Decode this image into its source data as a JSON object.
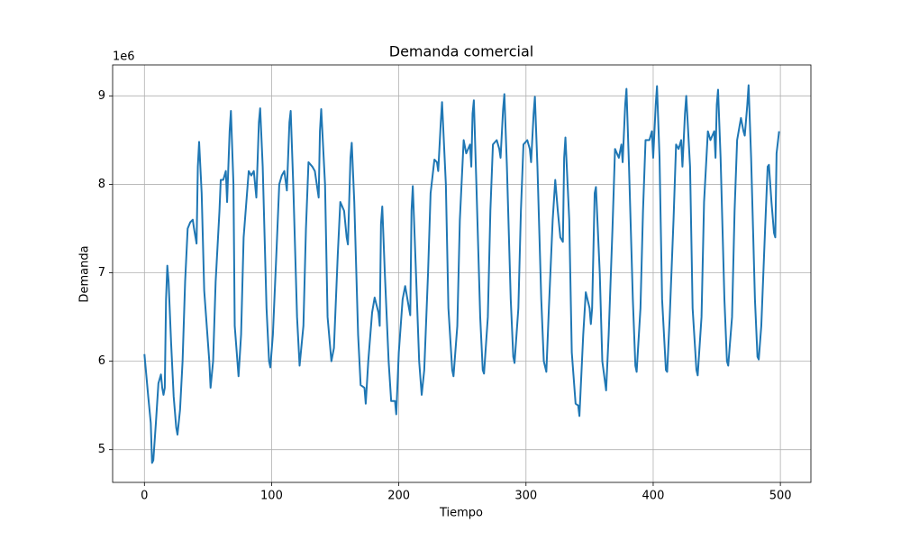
{
  "chart_data": {
    "type": "line",
    "title": "Demanda comercial",
    "x_label": "Tiempo",
    "y_label": "Demanda",
    "y_offset_text": "1e6",
    "color": "#1f77b4",
    "grid": true,
    "xlim": [
      -25,
      524
    ],
    "ylim": [
      4.63,
      9.35
    ],
    "xticks": [
      0,
      100,
      200,
      300,
      400,
      500
    ],
    "yticks": [
      5,
      6,
      7,
      8,
      9
    ],
    "x": [
      0,
      3,
      5,
      6,
      7,
      9,
      11,
      13,
      14,
      15,
      16,
      17,
      18,
      19,
      21,
      23,
      25,
      26,
      28,
      30,
      32,
      34,
      36,
      38,
      39,
      41,
      42,
      43,
      45,
      47,
      51,
      52,
      54,
      56,
      59,
      60,
      62,
      64,
      65,
      67,
      68,
      70,
      71,
      74,
      76,
      78,
      82,
      84,
      86,
      88,
      90,
      91,
      93,
      96,
      98,
      99,
      101,
      104,
      106,
      108,
      110,
      112,
      114,
      115,
      117,
      120,
      122,
      125,
      127,
      129,
      132,
      134,
      137,
      138,
      139,
      142,
      144,
      147,
      149,
      152,
      154,
      157,
      159,
      160,
      162,
      163,
      165,
      168,
      170,
      173,
      174,
      176,
      179,
      181,
      184,
      185,
      186,
      187,
      189,
      192,
      194,
      197,
      198,
      200,
      203,
      205,
      208,
      209,
      210,
      211,
      213,
      216,
      218,
      220,
      223,
      225,
      228,
      230,
      231,
      233,
      234,
      237,
      239,
      242,
      243,
      246,
      248,
      251,
      253,
      256,
      257,
      258,
      259,
      261,
      264,
      266,
      267,
      270,
      272,
      274,
      277,
      279,
      280,
      282,
      283,
      285,
      288,
      290,
      291,
      294,
      296,
      298,
      301,
      303,
      304,
      306,
      307,
      309,
      312,
      314,
      316,
      318,
      321,
      323,
      325,
      327,
      329,
      330,
      331,
      334,
      336,
      339,
      341,
      342,
      345,
      347,
      350,
      351,
      352,
      354,
      355,
      358,
      360,
      363,
      365,
      368,
      370,
      373,
      375,
      376,
      378,
      379,
      381,
      384,
      386,
      387,
      390,
      392,
      394,
      397,
      399,
      400,
      402,
      403,
      405,
      407,
      410,
      411,
      413,
      416,
      418,
      420,
      422,
      423,
      425,
      426,
      429,
      431,
      434,
      435,
      438,
      440,
      443,
      445,
      448,
      449,
      450,
      451,
      453,
      456,
      458,
      459,
      462,
      464,
      466,
      469,
      471,
      472,
      474,
      475,
      477,
      480,
      482,
      483,
      485,
      488,
      490,
      491,
      493,
      495,
      496,
      497,
      499
    ],
    "values": [
      6.08,
      5.6,
      5.3,
      4.85,
      4.88,
      5.3,
      5.75,
      5.85,
      5.7,
      5.62,
      5.7,
      6.7,
      7.08,
      6.9,
      6.2,
      5.6,
      5.25,
      5.17,
      5.45,
      6.0,
      6.9,
      7.5,
      7.57,
      7.6,
      7.5,
      7.33,
      8.2,
      8.48,
      7.9,
      6.8,
      6.0,
      5.7,
      6.0,
      6.9,
      7.7,
      8.05,
      8.05,
      8.15,
      7.8,
      8.6,
      8.83,
      8.0,
      6.4,
      5.83,
      6.3,
      7.4,
      8.15,
      8.1,
      8.15,
      7.85,
      8.7,
      8.86,
      8.2,
      6.6,
      6.0,
      5.93,
      6.3,
      7.3,
      8.0,
      8.1,
      8.15,
      7.93,
      8.7,
      8.83,
      8.0,
      6.5,
      5.95,
      6.4,
      7.5,
      8.25,
      8.2,
      8.15,
      7.85,
      8.6,
      8.85,
      8.0,
      6.5,
      6.0,
      6.15,
      7.2,
      7.8,
      7.7,
      7.4,
      7.32,
      8.3,
      8.47,
      7.8,
      6.3,
      5.73,
      5.7,
      5.52,
      6.0,
      6.55,
      6.72,
      6.55,
      6.4,
      7.55,
      7.75,
      7.0,
      6.0,
      5.55,
      5.55,
      5.4,
      6.1,
      6.7,
      6.85,
      6.6,
      6.52,
      7.7,
      7.98,
      7.2,
      6.0,
      5.62,
      5.9,
      7.0,
      7.9,
      8.28,
      8.25,
      8.15,
      8.7,
      8.93,
      8.0,
      6.6,
      5.9,
      5.83,
      6.4,
      7.6,
      8.5,
      8.35,
      8.45,
      8.2,
      8.8,
      8.95,
      8.0,
      6.5,
      5.9,
      5.86,
      6.5,
      7.7,
      8.45,
      8.5,
      8.4,
      8.3,
      8.85,
      9.02,
      8.2,
      6.7,
      6.05,
      5.98,
      6.6,
      7.7,
      8.45,
      8.5,
      8.4,
      8.25,
      8.8,
      8.99,
      8.2,
      6.7,
      6.0,
      5.88,
      6.6,
      7.6,
      8.05,
      7.7,
      7.4,
      7.35,
      8.3,
      8.53,
      7.6,
      6.1,
      5.52,
      5.5,
      5.38,
      6.3,
      6.78,
      6.6,
      6.42,
      6.6,
      7.9,
      7.97,
      7.0,
      6.0,
      5.67,
      6.3,
      7.5,
      8.4,
      8.3,
      8.45,
      8.25,
      8.9,
      9.08,
      8.2,
      6.7,
      5.95,
      5.88,
      6.6,
      7.7,
      8.5,
      8.5,
      8.6,
      8.3,
      8.9,
      9.11,
      8.3,
      6.7,
      5.9,
      5.88,
      6.5,
      7.6,
      8.45,
      8.4,
      8.5,
      8.2,
      8.8,
      9.0,
      8.2,
      6.6,
      5.9,
      5.84,
      6.5,
      7.8,
      8.6,
      8.5,
      8.6,
      8.3,
      8.9,
      9.07,
      8.3,
      6.7,
      6.0,
      5.95,
      6.5,
      7.7,
      8.5,
      8.75,
      8.6,
      8.55,
      8.9,
      9.12,
      8.3,
      6.7,
      6.05,
      6.02,
      6.4,
      7.5,
      8.2,
      8.22,
      7.8,
      7.45,
      7.4,
      8.35,
      8.6
    ]
  }
}
